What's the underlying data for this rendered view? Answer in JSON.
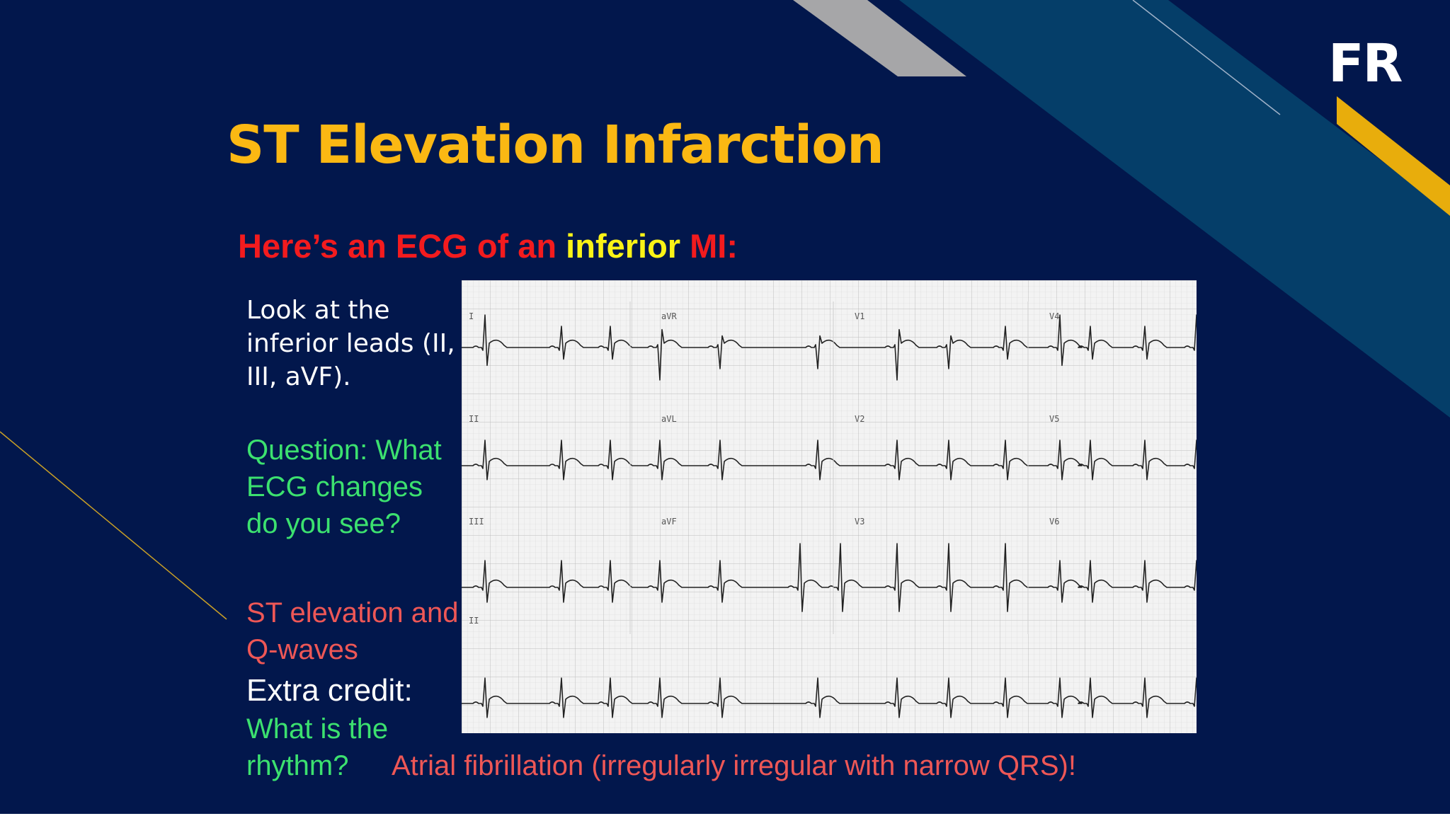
{
  "logo": "FR",
  "title": "ST Elevation Infarction",
  "subtitle": {
    "part1": "Here’s an ECG of an ",
    "part2": "inferior",
    "part3": " MI:"
  },
  "instructions": "Look at the inferior leads (II, III, aVF).",
  "question": "Question: What ECG changes do you see?",
  "answer1": "ST elevation and Q-waves",
  "extra_credit_label": "Extra credit:",
  "question2": "What is the rhythm?",
  "answer2": "Atrial fibrillation (irregularly irregular with narrow QRS)!",
  "ecg": {
    "lead_labels": [
      "I",
      "aVR",
      "V1",
      "V4",
      "II",
      "aVL",
      "V2",
      "V5",
      "III",
      "aVF",
      "V3",
      "V6",
      "II"
    ]
  },
  "colors": {
    "background": "#02174c",
    "title": "#fbb813",
    "subtitle_red": "#f31b1e",
    "subtitle_yellow": "#fbf316",
    "question_green": "#3ce16f",
    "answer_red": "#ee5756",
    "accent_teal": "#053e69",
    "accent_gold": "#e8ad0c"
  }
}
